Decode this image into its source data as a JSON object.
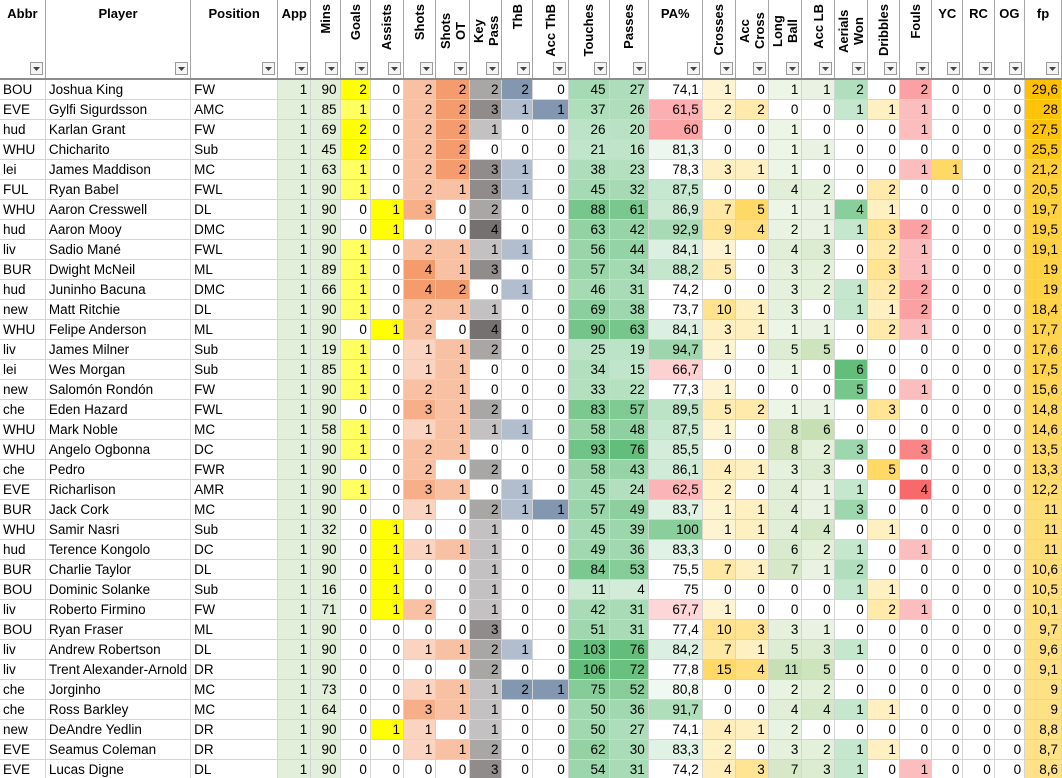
{
  "columns": [
    {
      "key": "abbr",
      "label": "Abbr",
      "vertical": false
    },
    {
      "key": "player",
      "label": "Player",
      "vertical": false
    },
    {
      "key": "position",
      "label": "Position",
      "vertical": false
    },
    {
      "key": "app",
      "label": "App",
      "vertical": false
    },
    {
      "key": "mins",
      "label": "Mins",
      "vertical": true
    },
    {
      "key": "goals",
      "label": "Goals",
      "vertical": true
    },
    {
      "key": "assists",
      "label": "Assists",
      "vertical": true
    },
    {
      "key": "shots",
      "label": "Shots",
      "vertical": true
    },
    {
      "key": "shots_ot",
      "label": "Shots OT",
      "vertical": true
    },
    {
      "key": "key_pass",
      "label": "Key Pass",
      "vertical": true
    },
    {
      "key": "thb",
      "label": "ThB",
      "vertical": true
    },
    {
      "key": "acc_thb",
      "label": "Acc ThB",
      "vertical": true
    },
    {
      "key": "touches",
      "label": "Touches",
      "vertical": true
    },
    {
      "key": "passes",
      "label": "Passes",
      "vertical": true
    },
    {
      "key": "pa_pct",
      "label": "PA%",
      "vertical": false
    },
    {
      "key": "crosses",
      "label": "Crosses",
      "vertical": true
    },
    {
      "key": "acc_cross",
      "label": "Acc Cross",
      "vertical": true
    },
    {
      "key": "long_ball",
      "label": "Long Ball",
      "vertical": true
    },
    {
      "key": "acc_lb",
      "label": "Acc LB",
      "vertical": true
    },
    {
      "key": "aerials_won",
      "label": "Aerials Won",
      "vertical": true
    },
    {
      "key": "dribbles",
      "label": "Dribbles",
      "vertical": true
    },
    {
      "key": "fouls",
      "label": "Fouls",
      "vertical": true
    },
    {
      "key": "yc",
      "label": "YC",
      "vertical": false
    },
    {
      "key": "rc",
      "label": "RC",
      "vertical": false
    },
    {
      "key": "og",
      "label": "OG",
      "vertical": false
    },
    {
      "key": "fp",
      "label": "fp",
      "vertical": false
    }
  ],
  "rows": [
    [
      "BOU",
      "Joshua King",
      "FW",
      "1",
      "90",
      "2",
      "0",
      "2",
      "2",
      "2",
      "2",
      "0",
      "45",
      "27",
      "74,1",
      "1",
      "0",
      "1",
      "1",
      "2",
      "0",
      "2",
      "0",
      "0",
      "0",
      "29,6"
    ],
    [
      "EVE",
      "Gylfi Sigurdsson",
      "AMC",
      "1",
      "85",
      "1",
      "0",
      "2",
      "2",
      "3",
      "1",
      "1",
      "37",
      "26",
      "61,5",
      "2",
      "2",
      "0",
      "0",
      "1",
      "1",
      "1",
      "0",
      "0",
      "0",
      "28"
    ],
    [
      "hud",
      "Karlan Grant",
      "FW",
      "1",
      "69",
      "2",
      "0",
      "2",
      "2",
      "1",
      "0",
      "0",
      "26",
      "20",
      "60",
      "0",
      "0",
      "1",
      "0",
      "0",
      "0",
      "1",
      "0",
      "0",
      "0",
      "27,5"
    ],
    [
      "WHU",
      "Chicharito",
      "Sub",
      "1",
      "45",
      "2",
      "0",
      "2",
      "2",
      "0",
      "0",
      "0",
      "21",
      "16",
      "81,3",
      "0",
      "0",
      "1",
      "1",
      "0",
      "0",
      "0",
      "0",
      "0",
      "0",
      "25,5"
    ],
    [
      "lei",
      "James Maddison",
      "MC",
      "1",
      "63",
      "1",
      "0",
      "2",
      "2",
      "3",
      "1",
      "0",
      "38",
      "23",
      "78,3",
      "3",
      "1",
      "1",
      "0",
      "0",
      "0",
      "1",
      "1",
      "0",
      "0",
      "21,2"
    ],
    [
      "FUL",
      "Ryan Babel",
      "FWL",
      "1",
      "90",
      "1",
      "0",
      "2",
      "1",
      "3",
      "1",
      "0",
      "45",
      "32",
      "87,5",
      "0",
      "0",
      "4",
      "2",
      "0",
      "2",
      "0",
      "0",
      "0",
      "0",
      "20,5"
    ],
    [
      "WHU",
      "Aaron Cresswell",
      "DL",
      "1",
      "90",
      "0",
      "1",
      "3",
      "0",
      "2",
      "0",
      "0",
      "88",
      "61",
      "86,9",
      "7",
      "5",
      "1",
      "1",
      "4",
      "1",
      "0",
      "0",
      "0",
      "0",
      "19,7"
    ],
    [
      "hud",
      "Aaron Mooy",
      "DMC",
      "1",
      "90",
      "0",
      "1",
      "0",
      "0",
      "4",
      "0",
      "0",
      "63",
      "42",
      "92,9",
      "9",
      "4",
      "2",
      "1",
      "1",
      "3",
      "2",
      "0",
      "0",
      "0",
      "19,5"
    ],
    [
      "liv",
      "Sadio Mané",
      "FWL",
      "1",
      "90",
      "1",
      "0",
      "2",
      "1",
      "1",
      "1",
      "0",
      "56",
      "44",
      "84,1",
      "1",
      "0",
      "4",
      "3",
      "0",
      "2",
      "1",
      "0",
      "0",
      "0",
      "19,1"
    ],
    [
      "BUR",
      "Dwight McNeil",
      "ML",
      "1",
      "89",
      "1",
      "0",
      "4",
      "1",
      "3",
      "0",
      "0",
      "57",
      "34",
      "88,2",
      "5",
      "0",
      "3",
      "2",
      "0",
      "3",
      "1",
      "0",
      "0",
      "0",
      "19"
    ],
    [
      "hud",
      "Juninho Bacuna",
      "DMC",
      "1",
      "66",
      "1",
      "0",
      "4",
      "2",
      "0",
      "1",
      "0",
      "46",
      "31",
      "74,2",
      "0",
      "0",
      "3",
      "2",
      "1",
      "2",
      "2",
      "0",
      "0",
      "0",
      "19"
    ],
    [
      "new",
      "Matt Ritchie",
      "DL",
      "1",
      "90",
      "1",
      "0",
      "2",
      "1",
      "1",
      "0",
      "0",
      "69",
      "38",
      "73,7",
      "10",
      "1",
      "3",
      "0",
      "1",
      "1",
      "2",
      "0",
      "0",
      "0",
      "18,4"
    ],
    [
      "WHU",
      "Felipe Anderson",
      "ML",
      "1",
      "90",
      "0",
      "1",
      "2",
      "0",
      "4",
      "0",
      "0",
      "90",
      "63",
      "84,1",
      "3",
      "1",
      "1",
      "1",
      "0",
      "2",
      "1",
      "0",
      "0",
      "0",
      "17,7"
    ],
    [
      "liv",
      "James Milner",
      "Sub",
      "1",
      "19",
      "1",
      "0",
      "1",
      "1",
      "2",
      "0",
      "0",
      "25",
      "19",
      "94,7",
      "1",
      "0",
      "5",
      "5",
      "0",
      "0",
      "0",
      "0",
      "0",
      "0",
      "17,6"
    ],
    [
      "lei",
      "Wes Morgan",
      "Sub",
      "1",
      "85",
      "1",
      "0",
      "1",
      "1",
      "0",
      "0",
      "0",
      "34",
      "15",
      "66,7",
      "0",
      "0",
      "1",
      "0",
      "6",
      "0",
      "0",
      "0",
      "0",
      "0",
      "17,5"
    ],
    [
      "new",
      "Salomón Rondón",
      "FW",
      "1",
      "90",
      "1",
      "0",
      "2",
      "1",
      "0",
      "0",
      "0",
      "33",
      "22",
      "77,3",
      "1",
      "0",
      "0",
      "0",
      "5",
      "0",
      "1",
      "0",
      "0",
      "0",
      "15,6"
    ],
    [
      "che",
      "Eden Hazard",
      "FWL",
      "1",
      "90",
      "0",
      "0",
      "3",
      "1",
      "2",
      "0",
      "0",
      "83",
      "57",
      "89,5",
      "5",
      "2",
      "1",
      "1",
      "0",
      "3",
      "0",
      "0",
      "0",
      "0",
      "14,8"
    ],
    [
      "WHU",
      "Mark Noble",
      "MC",
      "1",
      "58",
      "1",
      "0",
      "1",
      "1",
      "1",
      "1",
      "0",
      "58",
      "48",
      "87,5",
      "1",
      "0",
      "8",
      "6",
      "0",
      "0",
      "0",
      "0",
      "0",
      "0",
      "14,6"
    ],
    [
      "WHU",
      "Angelo Ogbonna",
      "DC",
      "1",
      "90",
      "1",
      "0",
      "2",
      "1",
      "0",
      "0",
      "0",
      "93",
      "76",
      "85,5",
      "0",
      "0",
      "8",
      "2",
      "3",
      "0",
      "3",
      "0",
      "0",
      "0",
      "13,5"
    ],
    [
      "che",
      "Pedro",
      "FWR",
      "1",
      "90",
      "0",
      "0",
      "2",
      "0",
      "2",
      "0",
      "0",
      "58",
      "43",
      "86,1",
      "4",
      "1",
      "3",
      "3",
      "0",
      "5",
      "0",
      "0",
      "0",
      "0",
      "13,3"
    ],
    [
      "EVE",
      "Richarlison",
      "AMR",
      "1",
      "90",
      "1",
      "0",
      "3",
      "1",
      "0",
      "1",
      "0",
      "45",
      "24",
      "62,5",
      "2",
      "0",
      "4",
      "1",
      "1",
      "0",
      "4",
      "0",
      "0",
      "0",
      "12,2"
    ],
    [
      "BUR",
      "Jack Cork",
      "MC",
      "1",
      "90",
      "0",
      "0",
      "1",
      "0",
      "2",
      "1",
      "1",
      "57",
      "49",
      "83,7",
      "1",
      "1",
      "4",
      "1",
      "3",
      "0",
      "0",
      "0",
      "0",
      "0",
      "11"
    ],
    [
      "WHU",
      "Samir Nasri",
      "Sub",
      "1",
      "32",
      "0",
      "1",
      "0",
      "0",
      "1",
      "0",
      "0",
      "45",
      "39",
      "100",
      "1",
      "1",
      "4",
      "4",
      "0",
      "1",
      "0",
      "0",
      "0",
      "0",
      "11"
    ],
    [
      "hud",
      "Terence Kongolo",
      "DC",
      "1",
      "90",
      "0",
      "1",
      "1",
      "1",
      "1",
      "0",
      "0",
      "49",
      "36",
      "83,3",
      "0",
      "0",
      "6",
      "2",
      "1",
      "0",
      "1",
      "0",
      "0",
      "0",
      "11"
    ],
    [
      "BUR",
      "Charlie Taylor",
      "DL",
      "1",
      "90",
      "0",
      "1",
      "0",
      "0",
      "1",
      "0",
      "0",
      "84",
      "53",
      "75,5",
      "7",
      "1",
      "7",
      "1",
      "2",
      "0",
      "0",
      "0",
      "0",
      "0",
      "10,6"
    ],
    [
      "BOU",
      "Dominic Solanke",
      "Sub",
      "1",
      "16",
      "0",
      "1",
      "0",
      "0",
      "1",
      "0",
      "0",
      "11",
      "4",
      "75",
      "0",
      "0",
      "0",
      "0",
      "1",
      "1",
      "0",
      "0",
      "0",
      "0",
      "10,5"
    ],
    [
      "liv",
      "Roberto Firmino",
      "FW",
      "1",
      "71",
      "0",
      "1",
      "2",
      "0",
      "1",
      "0",
      "0",
      "42",
      "31",
      "67,7",
      "1",
      "0",
      "0",
      "0",
      "0",
      "2",
      "1",
      "0",
      "0",
      "0",
      "10,1"
    ],
    [
      "BOU",
      "Ryan Fraser",
      "ML",
      "1",
      "90",
      "0",
      "0",
      "0",
      "0",
      "3",
      "0",
      "0",
      "51",
      "31",
      "77,4",
      "10",
      "3",
      "3",
      "1",
      "0",
      "0",
      "0",
      "0",
      "0",
      "0",
      "9,7"
    ],
    [
      "liv",
      "Andrew Robertson",
      "DL",
      "1",
      "90",
      "0",
      "0",
      "1",
      "1",
      "2",
      "1",
      "0",
      "103",
      "76",
      "84,2",
      "7",
      "1",
      "5",
      "3",
      "1",
      "0",
      "0",
      "0",
      "0",
      "0",
      "9,6"
    ],
    [
      "liv",
      "Trent Alexander-Arnold",
      "DR",
      "1",
      "90",
      "0",
      "0",
      "0",
      "0",
      "2",
      "0",
      "0",
      "106",
      "72",
      "77,8",
      "15",
      "4",
      "11",
      "5",
      "0",
      "0",
      "0",
      "0",
      "0",
      "0",
      "9,1"
    ],
    [
      "che",
      "Jorginho",
      "MC",
      "1",
      "73",
      "0",
      "0",
      "1",
      "1",
      "1",
      "2",
      "1",
      "75",
      "52",
      "80,8",
      "0",
      "0",
      "2",
      "2",
      "0",
      "0",
      "0",
      "0",
      "0",
      "0",
      "9"
    ],
    [
      "che",
      "Ross Barkley",
      "MC",
      "1",
      "64",
      "0",
      "0",
      "3",
      "1",
      "1",
      "0",
      "0",
      "50",
      "36",
      "91,7",
      "0",
      "0",
      "4",
      "4",
      "1",
      "1",
      "0",
      "0",
      "0",
      "0",
      "9"
    ],
    [
      "new",
      "DeAndre Yedlin",
      "DR",
      "1",
      "90",
      "0",
      "1",
      "1",
      "0",
      "1",
      "0",
      "0",
      "50",
      "27",
      "74,1",
      "4",
      "1",
      "2",
      "0",
      "0",
      "0",
      "0",
      "0",
      "0",
      "0",
      "8,8"
    ],
    [
      "EVE",
      "Seamus Coleman",
      "DR",
      "1",
      "90",
      "0",
      "0",
      "1",
      "1",
      "2",
      "0",
      "0",
      "62",
      "30",
      "83,3",
      "2",
      "0",
      "3",
      "2",
      "1",
      "1",
      "0",
      "0",
      "0",
      "0",
      "8,7"
    ],
    [
      "EVE",
      "Lucas Digne",
      "DL",
      "1",
      "90",
      "0",
      "0",
      "0",
      "0",
      "3",
      "0",
      "0",
      "54",
      "31",
      "74,2",
      "4",
      "3",
      "7",
      "3",
      "1",
      "0",
      "1",
      "0",
      "0",
      "0",
      "8,6"
    ]
  ]
}
